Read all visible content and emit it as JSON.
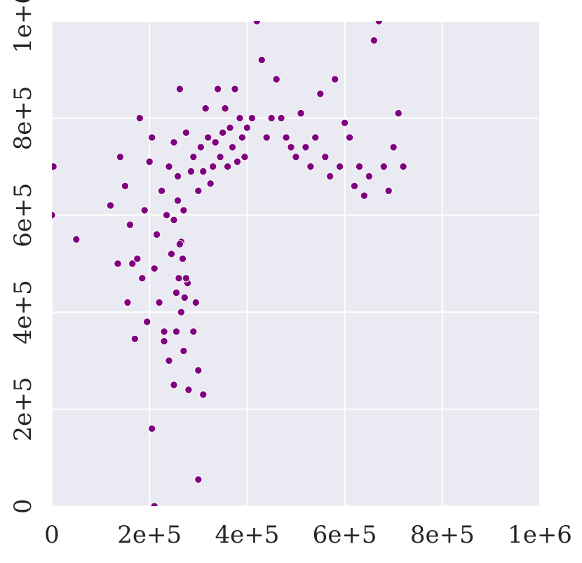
{
  "chart_data": {
    "type": "scatter",
    "title": "",
    "xlabel": "",
    "ylabel": "",
    "xlim": [
      0,
      1000000
    ],
    "ylim": [
      0,
      1000000
    ],
    "grid": true,
    "legend": "none",
    "x_ticks": [
      0,
      200000,
      400000,
      600000,
      800000,
      1000000
    ],
    "y_ticks": [
      0,
      200000,
      400000,
      600000,
      800000,
      1000000
    ],
    "x_tick_labels": [
      "0",
      "2e+5",
      "4e+5",
      "6e+5",
      "8e+5",
      "1e+6"
    ],
    "y_tick_labels": [
      "0",
      "2e+5",
      "4e+5",
      "6e+5",
      "8e+5",
      "1e+6"
    ],
    "colors": {
      "point": "#800080",
      "point_edge": "#ffffff",
      "background": "#eaeaf2",
      "grid": "#ffffff"
    },
    "series": [
      {
        "points": [
          [
            3000,
            700000
          ],
          [
            50000,
            550000
          ],
          [
            0,
            600000
          ],
          [
            120000,
            620000
          ],
          [
            140000,
            720000
          ],
          [
            135000,
            500000
          ],
          [
            150000,
            660000
          ],
          [
            160000,
            580000
          ],
          [
            155000,
            420000
          ],
          [
            165000,
            500000
          ],
          [
            170000,
            345000
          ],
          [
            175000,
            510000
          ],
          [
            180000,
            800000
          ],
          [
            185000,
            470000
          ],
          [
            190000,
            610000
          ],
          [
            195000,
            380000
          ],
          [
            200000,
            710000
          ],
          [
            205000,
            760000
          ],
          [
            210000,
            490000
          ],
          [
            215000,
            560000
          ],
          [
            220000,
            420000
          ],
          [
            225000,
            650000
          ],
          [
            230000,
            360000
          ],
          [
            235000,
            600000
          ],
          [
            240000,
            700000
          ],
          [
            245000,
            520000
          ],
          [
            250000,
            750000
          ],
          [
            255000,
            440000
          ],
          [
            258000,
            680000
          ],
          [
            262000,
            860000
          ],
          [
            265000,
            545000
          ],
          [
            270000,
            610000
          ],
          [
            275000,
            770000
          ],
          [
            278000,
            460000
          ],
          [
            285000,
            690000
          ],
          [
            290000,
            720000
          ],
          [
            295000,
            420000
          ],
          [
            300000,
            650000
          ],
          [
            305000,
            740000
          ],
          [
            310000,
            690000
          ],
          [
            315000,
            820000
          ],
          [
            320000,
            760000
          ],
          [
            325000,
            665000
          ],
          [
            330000,
            700000
          ],
          [
            335000,
            750000
          ],
          [
            340000,
            860000
          ],
          [
            345000,
            720000
          ],
          [
            350000,
            770000
          ],
          [
            355000,
            820000
          ],
          [
            360000,
            700000
          ],
          [
            365000,
            780000
          ],
          [
            370000,
            740000
          ],
          [
            375000,
            860000
          ],
          [
            380000,
            710000
          ],
          [
            385000,
            800000
          ],
          [
            390000,
            760000
          ],
          [
            395000,
            720000
          ],
          [
            400000,
            780000
          ],
          [
            410000,
            800000
          ],
          [
            420000,
            1000000
          ],
          [
            430000,
            920000
          ],
          [
            440000,
            760000
          ],
          [
            450000,
            800000
          ],
          [
            460000,
            880000
          ],
          [
            470000,
            800000
          ],
          [
            480000,
            760000
          ],
          [
            490000,
            740000
          ],
          [
            500000,
            720000
          ],
          [
            510000,
            810000
          ],
          [
            520000,
            740000
          ],
          [
            530000,
            700000
          ],
          [
            540000,
            760000
          ],
          [
            550000,
            850000
          ],
          [
            560000,
            720000
          ],
          [
            570000,
            680000
          ],
          [
            580000,
            880000
          ],
          [
            590000,
            700000
          ],
          [
            600000,
            790000
          ],
          [
            610000,
            760000
          ],
          [
            620000,
            660000
          ],
          [
            630000,
            700000
          ],
          [
            640000,
            640000
          ],
          [
            650000,
            680000
          ],
          [
            660000,
            960000
          ],
          [
            670000,
            1000000
          ],
          [
            680000,
            700000
          ],
          [
            690000,
            650000
          ],
          [
            700000,
            740000
          ],
          [
            710000,
            810000
          ],
          [
            720000,
            700000
          ],
          [
            205000,
            160000
          ],
          [
            300000,
            55000
          ],
          [
            210000,
            0
          ],
          [
            250000,
            250000
          ],
          [
            270000,
            320000
          ],
          [
            280000,
            240000
          ],
          [
            290000,
            360000
          ],
          [
            300000,
            280000
          ],
          [
            310000,
            230000
          ],
          [
            240000,
            300000
          ],
          [
            255000,
            360000
          ],
          [
            230000,
            340000
          ],
          [
            265000,
            400000
          ],
          [
            275000,
            470000
          ],
          [
            260000,
            470000
          ],
          [
            268000,
            510000
          ],
          [
            272000,
            430000
          ],
          [
            262000,
            540000
          ],
          [
            250000,
            590000
          ],
          [
            258000,
            630000
          ]
        ]
      }
    ]
  }
}
